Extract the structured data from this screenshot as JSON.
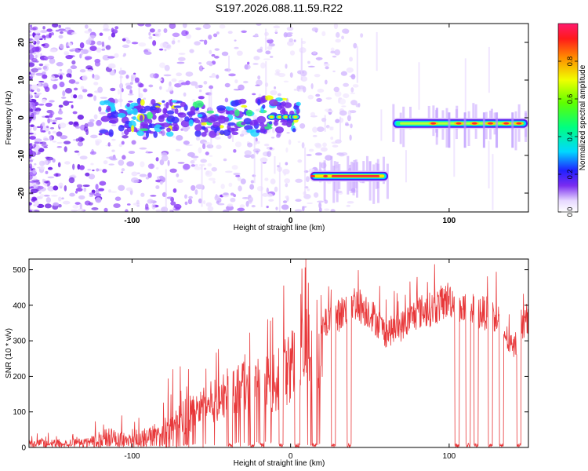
{
  "title": "S197.2026.088.11.59.R22",
  "colors": {
    "signal": "#e8383a",
    "ridge": "#ff2a2a",
    "speckle": "#7a2cf0",
    "axis": "#000000"
  },
  "chart_data": [
    {
      "type": "heatmap",
      "name": "spectrogram",
      "xlabel": "Height of straight line (km)",
      "ylabel": "Frequency (Hz)",
      "xlim": [
        -165,
        150
      ],
      "ylim": [
        -25,
        25
      ],
      "xticks": [
        -100,
        0,
        100
      ],
      "yticks": [
        20,
        10,
        0,
        -10,
        -20
      ],
      "colorbar": {
        "label": "Normalized spectral amplitude",
        "range": [
          0,
          1
        ],
        "ticks": [
          0.0,
          0.2,
          0.4,
          0.6,
          0.8
        ]
      },
      "segments": [
        {
          "x": [
            -120,
            5
          ],
          "freq": 0,
          "strength": 0.5
        },
        {
          "x": [
            12,
            62
          ],
          "freq": -15.5,
          "strength": 0.95
        },
        {
          "x": [
            64,
            150
          ],
          "freq": -1.5,
          "strength": 0.85
        }
      ]
    },
    {
      "type": "line",
      "name": "snr",
      "xlabel": "Height of straight line (km)",
      "ylabel": "SNR (10 * v/v)",
      "xlim": [
        -165,
        150
      ],
      "ylim": [
        0,
        530
      ],
      "xticks": [
        -100,
        0,
        100
      ],
      "yticks": [
        0,
        100,
        200,
        300,
        400,
        500
      ],
      "envelope_x": [
        -165,
        -130,
        -115,
        -100,
        -80,
        -60,
        -40,
        -25,
        -10,
        0,
        10,
        20,
        30,
        40,
        50,
        60,
        70,
        80,
        90,
        100,
        110,
        120,
        130,
        140,
        150
      ],
      "envelope_y": [
        15,
        18,
        40,
        25,
        60,
        120,
        180,
        200,
        210,
        270,
        320,
        350,
        380,
        420,
        390,
        330,
        350,
        390,
        400,
        430,
        400,
        390,
        380,
        280,
        380
      ],
      "dropouts_x": [
        -38,
        -24,
        -18,
        -6,
        4,
        15,
        27,
        37,
        105,
        112,
        117,
        126,
        133,
        144
      ]
    }
  ]
}
